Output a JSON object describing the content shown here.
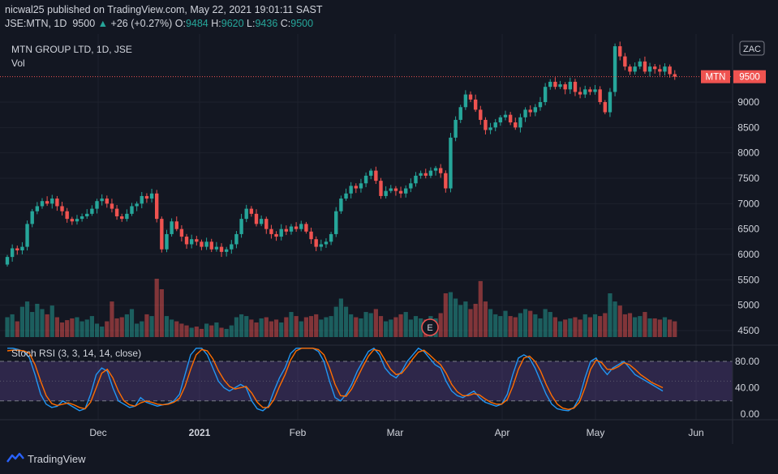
{
  "header": {
    "publisher_line": "nicwal25 published on TradingView.com, May 22, 2021 19:01:11 SAST",
    "symbol": "JSE:MTN, 1D",
    "last": "9500",
    "change": "+26 (+0.27%)",
    "o_label": "O:",
    "o_value": "9484",
    "h_label": "H:",
    "h_value": "9620",
    "l_label": "L:",
    "l_value": "9436",
    "c_label": "C:",
    "c_value": "9500"
  },
  "pane": {
    "title": "MTN GROUP LTD, 1D, JSE",
    "vol_label": "Vol",
    "currency": "ZAC",
    "price_tag_symbol": "MTN",
    "price_tag_value": "9500",
    "earnings_marker": "E"
  },
  "indicator": {
    "title": "Stoch RSI (3, 3, 14, 14, close)",
    "ticks": [
      "80.00",
      "40.00",
      "0.00"
    ]
  },
  "footer": {
    "brand": "TradingView"
  },
  "colors": {
    "up": "#26a69a",
    "down": "#ef5350",
    "k_line": "#2196f3",
    "d_line": "#ff6d00",
    "band": "#7e57c2"
  },
  "chart_data": [
    {
      "type": "candlestick",
      "title": "MTN GROUP LTD, 1D, JSE",
      "ylim": [
        4200,
        10500
      ],
      "y_ticks": [
        4500,
        5000,
        5500,
        6000,
        6500,
        7000,
        7500,
        8000,
        8500,
        9000
      ],
      "x_ticks": [
        "Dec",
        "2021",
        "Feb",
        "Mar",
        "Apr",
        "May",
        "Jun"
      ],
      "last_price": 9500,
      "close": [
        5950,
        6120,
        6080,
        6150,
        6600,
        6850,
        6950,
        7050,
        7000,
        7100,
        6950,
        6850,
        6700,
        6650,
        6700,
        6750,
        6800,
        6900,
        7050,
        7100,
        7000,
        6900,
        6750,
        6700,
        6800,
        6950,
        7000,
        7150,
        7100,
        7200,
        6700,
        6100,
        6400,
        6650,
        6500,
        6350,
        6200,
        6300,
        6250,
        6150,
        6250,
        6100,
        6150,
        6050,
        6100,
        6200,
        6400,
        6700,
        6900,
        6800,
        6600,
        6700,
        6500,
        6400,
        6350,
        6500,
        6450,
        6550,
        6500,
        6600,
        6450,
        6300,
        6150,
        6200,
        6250,
        6400,
        6850,
        7100,
        7200,
        7350,
        7300,
        7400,
        7550,
        7650,
        7450,
        7150,
        7250,
        7300,
        7250,
        7200,
        7300,
        7400,
        7550,
        7600,
        7550,
        7650,
        7700,
        7600,
        7300,
        8300,
        8650,
        8900,
        9150,
        9050,
        8850,
        8650,
        8450,
        8500,
        8600,
        8700,
        8750,
        8600,
        8500,
        8700,
        8850,
        8800,
        8900,
        9000,
        9300,
        9400,
        9300,
        9350,
        9250,
        9400,
        9200,
        9150,
        9250,
        9200,
        9250,
        9000,
        8800,
        9200,
        10100,
        9900,
        9700,
        9600,
        9700,
        9800,
        9600,
        9700,
        9650,
        9600,
        9700,
        9550,
        9500
      ],
      "volume_relative": [
        0.34,
        0.39,
        0.27,
        0.52,
        0.61,
        0.43,
        0.57,
        0.48,
        0.39,
        0.54,
        0.34,
        0.25,
        0.29,
        0.32,
        0.34,
        0.27,
        0.3,
        0.36,
        0.23,
        0.18,
        0.27,
        0.61,
        0.32,
        0.34,
        0.39,
        0.48,
        0.23,
        0.27,
        0.39,
        0.36,
        1.0,
        0.82,
        0.36,
        0.3,
        0.27,
        0.23,
        0.2,
        0.16,
        0.18,
        0.14,
        0.23,
        0.2,
        0.25,
        0.16,
        0.14,
        0.2,
        0.34,
        0.39,
        0.36,
        0.3,
        0.25,
        0.32,
        0.34,
        0.27,
        0.3,
        0.25,
        0.34,
        0.43,
        0.36,
        0.27,
        0.34,
        0.36,
        0.39,
        0.3,
        0.34,
        0.36,
        0.52,
        0.66,
        0.52,
        0.39,
        0.34,
        0.32,
        0.43,
        0.41,
        0.48,
        0.36,
        0.27,
        0.3,
        0.34,
        0.39,
        0.43,
        0.3,
        0.36,
        0.32,
        0.3,
        0.36,
        0.32,
        0.41,
        0.75,
        0.77,
        0.66,
        0.55,
        0.61,
        0.48,
        0.57,
        0.96,
        0.61,
        0.48,
        0.39,
        0.36,
        0.45,
        0.36,
        0.34,
        0.41,
        0.48,
        0.45,
        0.39,
        0.32,
        0.48,
        0.43,
        0.34,
        0.27,
        0.3,
        0.32,
        0.34,
        0.3,
        0.39,
        0.34,
        0.39,
        0.36,
        0.41,
        0.75,
        0.61,
        0.54,
        0.39,
        0.41,
        0.34,
        0.36,
        0.43,
        0.32,
        0.32,
        0.3,
        0.34,
        0.3,
        0.27
      ]
    },
    {
      "type": "line",
      "title": "Stoch RSI (3, 3, 14, 14, close)",
      "ylim": [
        0,
        100
      ],
      "bands": [
        20,
        80
      ],
      "series": [
        {
          "name": "K",
          "values": [
            100,
            100,
            98,
            95,
            85,
            60,
            30,
            15,
            10,
            12,
            20,
            15,
            10,
            5,
            8,
            30,
            60,
            70,
            65,
            40,
            20,
            15,
            10,
            12,
            25,
            18,
            15,
            12,
            14,
            16,
            20,
            30,
            60,
            90,
            100,
            100,
            90,
            70,
            50,
            40,
            35,
            40,
            45,
            40,
            20,
            8,
            5,
            12,
            35,
            55,
            70,
            92,
            100,
            100,
            100,
            100,
            95,
            80,
            50,
            25,
            20,
            30,
            45,
            65,
            80,
            95,
            100,
            90,
            70,
            60,
            55,
            65,
            80,
            90,
            100,
            95,
            85,
            75,
            70,
            50,
            35,
            28,
            25,
            30,
            35,
            25,
            18,
            15,
            12,
            15,
            30,
            60,
            85,
            90,
            85,
            70,
            50,
            30,
            15,
            8,
            6,
            5,
            10,
            25,
            55,
            80,
            85,
            70,
            60,
            70,
            75,
            80,
            70,
            60,
            55,
            50,
            45,
            40,
            35
          ]
        },
        {
          "name": "D",
          "values": [
            96,
            97,
            97,
            96,
            92,
            75,
            50,
            28,
            16,
            13,
            15,
            17,
            14,
            10,
            8,
            18,
            40,
            62,
            68,
            55,
            35,
            20,
            14,
            12,
            17,
            20,
            18,
            15,
            14,
            15,
            18,
            24,
            42,
            68,
            90,
            98,
            96,
            84,
            66,
            52,
            42,
            38,
            40,
            42,
            32,
            18,
            10,
            10,
            22,
            42,
            60,
            82,
            96,
            100,
            100,
            100,
            98,
            90,
            70,
            45,
            28,
            27,
            38,
            55,
            72,
            88,
            98,
            96,
            82,
            68,
            60,
            62,
            72,
            84,
            94,
            97,
            90,
            82,
            75,
            62,
            45,
            34,
            28,
            28,
            31,
            29,
            23,
            18,
            15,
            15,
            22,
            42,
            68,
            85,
            88,
            80,
            65,
            45,
            28,
            15,
            9,
            7,
            9,
            18,
            40,
            68,
            82,
            78,
            68,
            68,
            72,
            78,
            75,
            68,
            60,
            54,
            48,
            44,
            40
          ]
        }
      ]
    }
  ]
}
